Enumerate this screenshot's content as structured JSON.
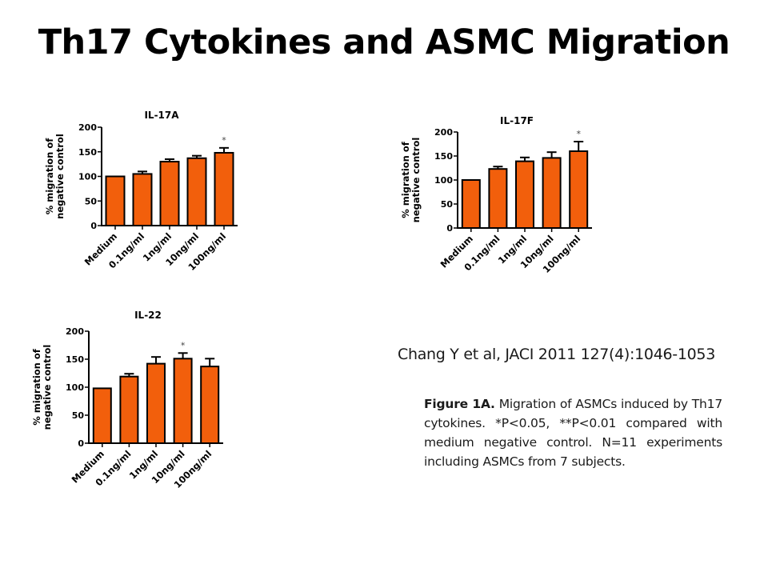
{
  "slide": {
    "title": "Th17 Cytokines and ASMC Migration",
    "citation": "Chang Y et al, JACI 2011 127(4):1046-1053",
    "caption_label": "Figure 1A.",
    "caption_text": "Migration of ASMCs induced by Th17 cytokines. *P<0.05, **P<0.01 compared with medium negative control. N=11 experiments including ASMCs from 7 subjects."
  },
  "colors": {
    "bar": "#f25f0c",
    "outline": "#000000"
  },
  "chart_data": [
    {
      "type": "bar",
      "title": "IL-17A",
      "ylabel": "% migration of negative control",
      "ylim": [
        0,
        200
      ],
      "yticks": [
        0,
        50,
        100,
        150,
        200
      ],
      "categories": [
        "Medium",
        "0.1ng/ml",
        "1ng/ml",
        "10ng/ml",
        "100ng/ml"
      ],
      "values": [
        100,
        105,
        130,
        137,
        148
      ],
      "errors": [
        0,
        5,
        5,
        5,
        10
      ],
      "significance": [
        "",
        "",
        "",
        "",
        "*"
      ]
    },
    {
      "type": "bar",
      "title": "IL-17F",
      "ylabel": "% migration of negative control",
      "ylim": [
        0,
        200
      ],
      "yticks": [
        0,
        50,
        100,
        150,
        200
      ],
      "categories": [
        "Medium",
        "0.1ng/ml",
        "1ng/ml",
        "10ng/ml",
        "100ng/ml"
      ],
      "values": [
        100,
        123,
        139,
        146,
        160
      ],
      "errors": [
        0,
        5,
        8,
        12,
        20
      ],
      "significance": [
        "",
        "",
        "",
        "",
        "*"
      ]
    },
    {
      "type": "bar",
      "title": "IL-22",
      "ylabel": "% migration of negative control",
      "ylim": [
        0,
        200
      ],
      "yticks": [
        0,
        50,
        100,
        150,
        200
      ],
      "categories": [
        "Medium",
        "0.1ng/ml",
        "1ng/ml",
        "10ng/ml",
        "100ng/ml"
      ],
      "values": [
        98,
        119,
        142,
        151,
        137
      ],
      "errors": [
        0,
        5,
        12,
        10,
        14
      ],
      "significance": [
        "",
        "",
        "",
        "*",
        ""
      ]
    }
  ]
}
